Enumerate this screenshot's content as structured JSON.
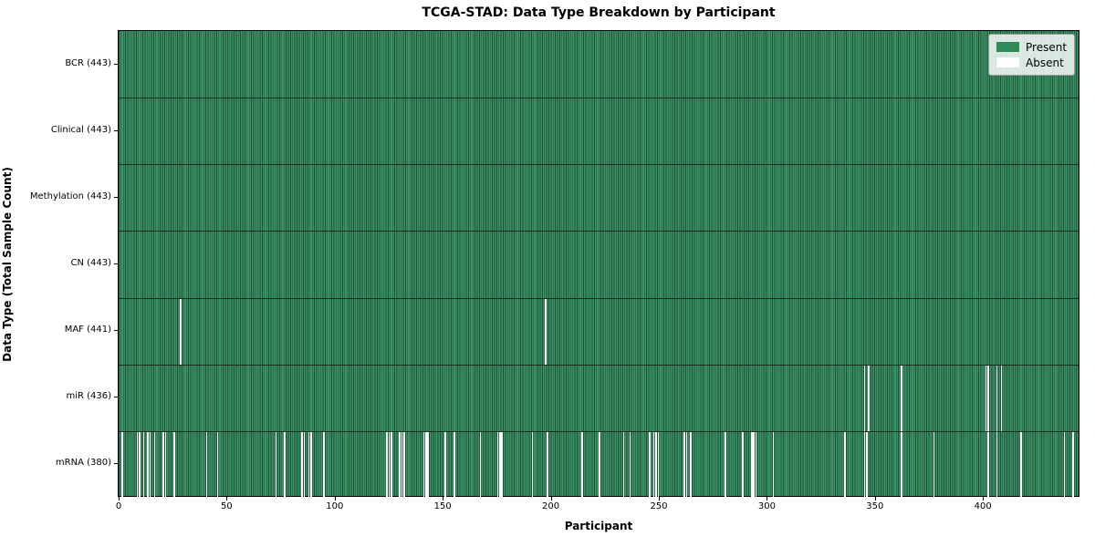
{
  "chart_data": {
    "type": "heatmap",
    "title": "TCGA-STAD: Data Type Breakdown by Participant",
    "xlabel": "Participant",
    "ylabel": "Data Type (Total Sample Count)",
    "n_participants": 443,
    "x_ticks": [
      0,
      50,
      100,
      150,
      200,
      250,
      300,
      350,
      400
    ],
    "legend": [
      {
        "label": "Present",
        "color": "#2E8B57"
      },
      {
        "label": "Absent",
        "color": "#FFFFFF"
      }
    ],
    "colors": {
      "present_fill": "#3d9166",
      "present_edge": "#1c5134",
      "absent": "#ffffff"
    },
    "rows": [
      {
        "label": "BCR (443)",
        "data_type": "BCR",
        "total_samples": 443,
        "absent_participants": []
      },
      {
        "label": "Clinical (443)",
        "data_type": "Clinical",
        "total_samples": 443,
        "absent_participants": []
      },
      {
        "label": "Methylation (443)",
        "data_type": "Methylation",
        "total_samples": 443,
        "absent_participants": []
      },
      {
        "label": "CN (443)",
        "data_type": "CN",
        "total_samples": 443,
        "absent_participants": []
      },
      {
        "label": "MAF (441)",
        "data_type": "MAF",
        "total_samples": 441,
        "absent_participants": [
          28,
          196
        ]
      },
      {
        "label": "miR (436)",
        "data_type": "miR",
        "total_samples": 436,
        "absent_participants": [
          343,
          345,
          360,
          399,
          400,
          404,
          406
        ]
      },
      {
        "label": "mRNA (380)",
        "data_type": "mRNA",
        "total_samples": 380,
        "absent_participants": [
          1,
          8,
          9,
          11,
          13,
          14,
          16,
          20,
          21,
          25,
          40,
          45,
          72,
          76,
          84,
          85,
          87,
          88,
          94,
          123,
          124,
          125,
          129,
          130,
          131,
          140,
          141,
          142,
          150,
          154,
          166,
          174,
          175,
          176,
          190,
          197,
          213,
          221,
          232,
          235,
          244,
          246,
          247,
          248,
          260,
          261,
          263,
          279,
          287,
          291,
          292,
          293,
          301,
          334,
          343,
          344,
          360,
          375,
          400,
          404,
          415,
          435,
          439
        ]
      }
    ]
  }
}
